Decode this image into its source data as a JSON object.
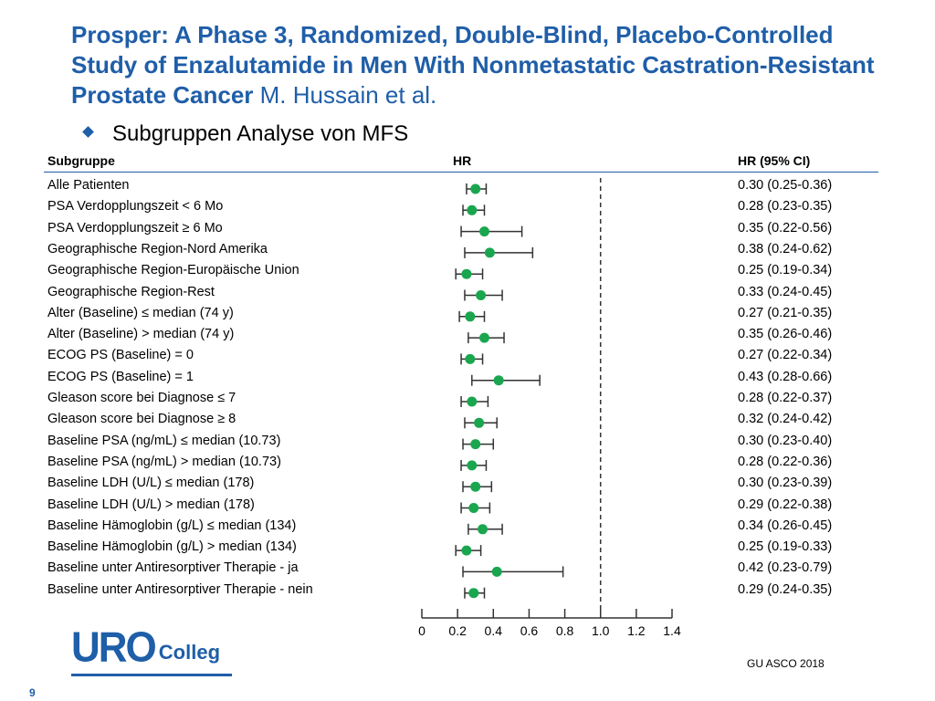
{
  "slide": {
    "title_main": "Prosper: A Phase 3, Randomized, Double-Blind, Placebo-Controlled Study of Enzalutamide in Men With Nonmetastatic Castration-Resistant Prostate Cancer",
    "title_authors": " M. Hussain et al.",
    "subtitle": "Subgruppen Analyse von MFS",
    "logo_text_main": "URO",
    "logo_text_sub": "Colleg",
    "source": "GU ASCO 2018",
    "page_number": "9",
    "accent_color": "#1f5ea8",
    "marker_color": "#1aa64e"
  },
  "chart_data": {
    "type": "forest",
    "headers": {
      "subgroup": "Subgruppe",
      "hr": "HR",
      "ci": "HR (95% CI)"
    },
    "xlim": [
      0,
      1.4
    ],
    "x_ticks": [
      0,
      0.2,
      0.4,
      0.6,
      0.8,
      1.0,
      1.2,
      1.4
    ],
    "x_tick_labels": [
      "0",
      "0.2",
      "0.4",
      "0.6",
      "0.8",
      "1.0",
      "1.2",
      "1.4"
    ],
    "reference_line": 1.0,
    "rows": [
      {
        "label": "Alle Patienten",
        "hr": 0.3,
        "lo": 0.25,
        "hi": 0.36,
        "ci_text": "0.30 (0.25-0.36)"
      },
      {
        "label": "PSA Verdopplungszeit < 6 Mo",
        "hr": 0.28,
        "lo": 0.23,
        "hi": 0.35,
        "ci_text": "0.28 (0.23-0.35)"
      },
      {
        "label": "PSA Verdopplungszeit ≥ 6 Mo",
        "hr": 0.35,
        "lo": 0.22,
        "hi": 0.56,
        "ci_text": "0.35 (0.22-0.56)"
      },
      {
        "label": "Geographische Region-Nord Amerika",
        "hr": 0.38,
        "lo": 0.24,
        "hi": 0.62,
        "ci_text": "0.38 (0.24-0.62)"
      },
      {
        "label": "Geographische Region-Europäische Union",
        "hr": 0.25,
        "lo": 0.19,
        "hi": 0.34,
        "ci_text": "0.25 (0.19-0.34)"
      },
      {
        "label": "Geographische Region-Rest",
        "hr": 0.33,
        "lo": 0.24,
        "hi": 0.45,
        "ci_text": "0.33 (0.24-0.45)"
      },
      {
        "label": "Alter (Baseline) ≤ median (74 y)",
        "hr": 0.27,
        "lo": 0.21,
        "hi": 0.35,
        "ci_text": "0.27 (0.21-0.35)"
      },
      {
        "label": "Alter (Baseline) > median (74 y)",
        "hr": 0.35,
        "lo": 0.26,
        "hi": 0.46,
        "ci_text": "0.35 (0.26-0.46)"
      },
      {
        "label": "ECOG PS (Baseline) = 0",
        "hr": 0.27,
        "lo": 0.22,
        "hi": 0.34,
        "ci_text": "0.27 (0.22-0.34)"
      },
      {
        "label": "ECOG PS (Baseline) = 1",
        "hr": 0.43,
        "lo": 0.28,
        "hi": 0.66,
        "ci_text": "0.43 (0.28-0.66)"
      },
      {
        "label": "Gleason score bei Diagnose ≤ 7",
        "hr": 0.28,
        "lo": 0.22,
        "hi": 0.37,
        "ci_text": "0.28 (0.22-0.37)"
      },
      {
        "label": "Gleason score bei Diagnose ≥ 8",
        "hr": 0.32,
        "lo": 0.24,
        "hi": 0.42,
        "ci_text": "0.32 (0.24-0.42)"
      },
      {
        "label": "Baseline PSA (ng/mL) ≤ median (10.73)",
        "hr": 0.3,
        "lo": 0.23,
        "hi": 0.4,
        "ci_text": "0.30 (0.23-0.40)"
      },
      {
        "label": "Baseline PSA (ng/mL) > median (10.73)",
        "hr": 0.28,
        "lo": 0.22,
        "hi": 0.36,
        "ci_text": "0.28 (0.22-0.36)"
      },
      {
        "label": "Baseline LDH (U/L) ≤ median (178)",
        "hr": 0.3,
        "lo": 0.23,
        "hi": 0.39,
        "ci_text": "0.30 (0.23-0.39)"
      },
      {
        "label": "Baseline LDH (U/L) > median (178)",
        "hr": 0.29,
        "lo": 0.22,
        "hi": 0.38,
        "ci_text": "0.29 (0.22-0.38)"
      },
      {
        "label": "Baseline Hämoglobin (g/L) ≤ median (134)",
        "hr": 0.34,
        "lo": 0.26,
        "hi": 0.45,
        "ci_text": "0.34 (0.26-0.45)"
      },
      {
        "label": "Baseline Hämoglobin (g/L) > median (134)",
        "hr": 0.25,
        "lo": 0.19,
        "hi": 0.33,
        "ci_text": "0.25 (0.19-0.33)"
      },
      {
        "label": "Baseline unter Antiresorptiver Therapie - ja",
        "hr": 0.42,
        "lo": 0.23,
        "hi": 0.79,
        "ci_text": "0.42 (0.23-0.79)"
      },
      {
        "label": "Baseline unter Antiresorptiver Therapie - nein",
        "hr": 0.29,
        "lo": 0.24,
        "hi": 0.35,
        "ci_text": "0.29 (0.24-0.35)"
      }
    ]
  }
}
